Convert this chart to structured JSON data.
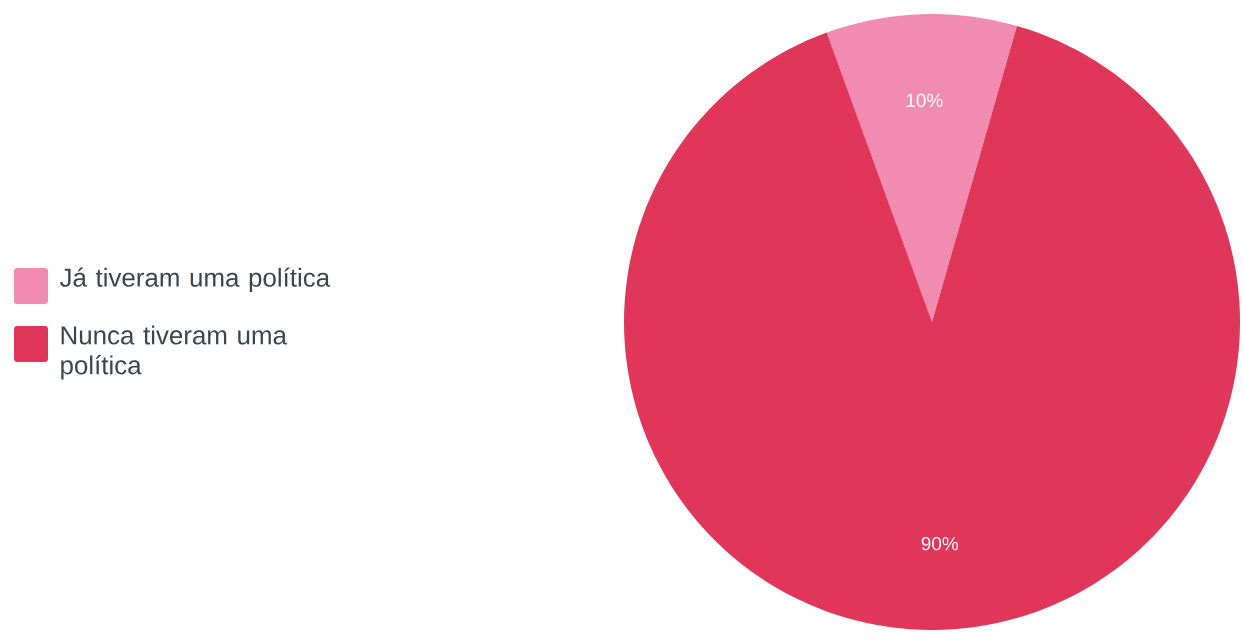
{
  "chart_data": {
    "type": "pie",
    "categories": [
      "Já tiveram uma política",
      "Nunca tiveram uma política"
    ],
    "values": [
      10,
      90
    ],
    "colors": [
      "#f28bb0",
      "#e0365a"
    ],
    "value_labels": [
      "10%",
      "90%"
    ],
    "legend": "left"
  }
}
